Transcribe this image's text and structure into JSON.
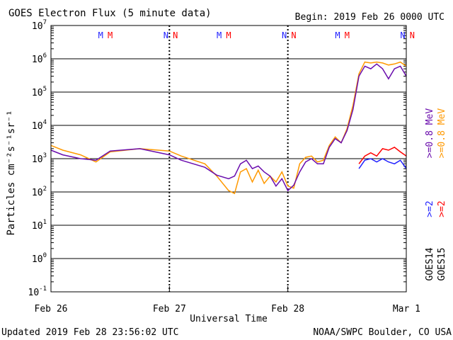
{
  "chart_data": {
    "type": "line",
    "title": "GOES Electron Flux (5 minute data)",
    "begin_label": "Begin: 2019 Feb 26 0000 UTC",
    "xlabel": "Universal Time",
    "ylabel": "Particles cm⁻²s⁻¹sr⁻¹",
    "x_range_days": [
      0,
      3
    ],
    "x_ticks": [
      {
        "day": 0,
        "label": "Feb 26"
      },
      {
        "day": 1,
        "label": "Feb 27"
      },
      {
        "day": 2,
        "label": "Feb 28"
      },
      {
        "day": 3,
        "label": "Mar 1"
      }
    ],
    "y_scale": "log",
    "y_range": [
      0.1,
      10000000
    ],
    "y_ticks": [
      {
        "value": 0.1,
        "base": "10",
        "exp": "-1"
      },
      {
        "value": 1,
        "base": "10",
        "exp": "0"
      },
      {
        "value": 10,
        "base": "10",
        "exp": "1"
      },
      {
        "value": 100,
        "base": "10",
        "exp": "2"
      },
      {
        "value": 1000,
        "base": "10",
        "exp": "3"
      },
      {
        "value": 10000,
        "base": "10",
        "exp": "4"
      },
      {
        "value": 100000,
        "base": "10",
        "exp": "5"
      },
      {
        "value": 1000000,
        "base": "10",
        "exp": "6"
      },
      {
        "value": 10000000,
        "base": "10",
        "exp": "7"
      }
    ],
    "threshold": 1000,
    "grid": true,
    "markers": [
      {
        "day": 0.42,
        "text": "M",
        "color": "#2020ff"
      },
      {
        "day": 0.5,
        "text": "M",
        "color": "#ff0000"
      },
      {
        "day": 0.97,
        "text": "N",
        "color": "#2020ff"
      },
      {
        "day": 1.05,
        "text": "N",
        "color": "#ff0000"
      },
      {
        "day": 1.42,
        "text": "M",
        "color": "#2020ff"
      },
      {
        "day": 1.5,
        "text": "M",
        "color": "#ff0000"
      },
      {
        "day": 1.97,
        "text": "N",
        "color": "#2020ff"
      },
      {
        "day": 2.05,
        "text": "N",
        "color": "#ff0000"
      },
      {
        "day": 2.42,
        "text": "M",
        "color": "#2020ff"
      },
      {
        "day": 2.5,
        "text": "M",
        "color": "#ff0000"
      },
      {
        "day": 2.97,
        "text": "N",
        "color": "#2020ff"
      },
      {
        "day": 3.05,
        "text": "N",
        "color": "#ff0000"
      }
    ],
    "legend": [
      {
        "text": ">=0.8 MeV",
        "color": "#ff9900"
      },
      {
        "text": ">=0.8 MeV",
        "color": "#6a0dad"
      },
      {
        "text": ">=2",
        "color": "#ff0000"
      },
      {
        "text": ">=2",
        "color": "#2020ff"
      },
      {
        "text": "GOES15",
        "color": "#000000"
      },
      {
        "text": "GOES14",
        "color": "#000000"
      }
    ],
    "series": [
      {
        "name": "GOES15 >=0.8 MeV",
        "color": "#ff9900",
        "x": [
          0,
          0.1,
          0.25,
          0.38,
          0.5,
          0.75,
          1.0,
          1.1,
          1.3,
          1.4,
          1.5,
          1.55,
          1.6,
          1.65,
          1.7,
          1.75,
          1.8,
          1.85,
          1.9,
          1.95,
          2.0,
          2.05,
          2.1,
          2.15,
          2.2,
          2.25,
          2.3,
          2.35,
          2.4,
          2.45,
          2.5,
          2.55,
          2.6,
          2.65,
          2.7,
          2.75,
          2.8,
          2.85,
          2.9,
          2.95,
          3.0
        ],
        "y": [
          2500,
          1800,
          1300,
          800,
          1600,
          2000,
          1700,
          1200,
          700,
          300,
          110,
          90,
          400,
          500,
          200,
          450,
          180,
          300,
          200,
          400,
          150,
          130,
          700,
          1100,
          1200,
          800,
          900,
          2500,
          4500,
          3000,
          8000,
          40000,
          350000,
          800000,
          750000,
          800000,
          750000,
          650000,
          700000,
          800000,
          600000
        ]
      },
      {
        "name": "GOES14 >=0.8 MeV",
        "color": "#6a0dad",
        "x": [
          0,
          0.1,
          0.25,
          0.38,
          0.5,
          0.75,
          1.0,
          1.1,
          1.3,
          1.4,
          1.5,
          1.55,
          1.6,
          1.65,
          1.7,
          1.75,
          1.8,
          1.85,
          1.9,
          1.95,
          2.0,
          2.05,
          2.1,
          2.15,
          2.2,
          2.25,
          2.3,
          2.35,
          2.4,
          2.45,
          2.5,
          2.55,
          2.6,
          2.65,
          2.7,
          2.75,
          2.8,
          2.85,
          2.9,
          2.95,
          3.0
        ],
        "y": [
          1800,
          1300,
          1000,
          900,
          1700,
          2000,
          1300,
          900,
          550,
          320,
          250,
          300,
          700,
          900,
          500,
          600,
          400,
          300,
          150,
          250,
          110,
          160,
          400,
          800,
          1000,
          700,
          700,
          2200,
          4000,
          3000,
          7000,
          30000,
          300000,
          600000,
          500000,
          700000,
          500000,
          250000,
          500000,
          600000,
          300000
        ]
      },
      {
        "name": "GOES15 >=2",
        "color": "#ff0000",
        "x": [
          2.6,
          2.65,
          2.7,
          2.75,
          2.8,
          2.85,
          2.9,
          2.95,
          3.0
        ],
        "y": [
          700,
          1200,
          1500,
          1200,
          2000,
          1800,
          2200,
          1600,
          1200
        ]
      },
      {
        "name": "GOES14 >=2",
        "color": "#2020ff",
        "x": [
          2.6,
          2.65,
          2.7,
          2.75,
          2.8,
          2.85,
          2.9,
          2.95,
          3.0
        ],
        "y": [
          500,
          900,
          1000,
          800,
          1000,
          800,
          700,
          900,
          500
        ]
      }
    ]
  },
  "footer": {
    "updated": "Updated 2019 Feb 28 23:56:02 UTC",
    "source": "NOAA/SWPC Boulder, CO USA"
  }
}
